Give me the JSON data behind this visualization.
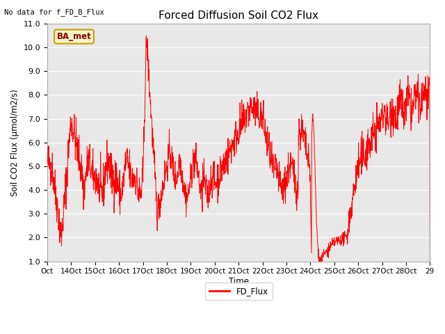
{
  "title": "Forced Diffusion Soil CO2 Flux",
  "top_left_text": "No data for f_FD_B_Flux",
  "ylabel": "Soil CO2 Flux (μmol/m2/s)",
  "xlabel": "Time",
  "legend_label": "FD_Flux",
  "line_color": "red",
  "bg_color": "#e8e8e8",
  "ylim": [
    1.0,
    11.0
  ],
  "yticks": [
    1.0,
    2.0,
    3.0,
    4.0,
    5.0,
    6.0,
    7.0,
    8.0,
    9.0,
    10.0,
    11.0
  ],
  "xtick_labels": [
    "Oct",
    "14Oct",
    "15Oct",
    "16Oct",
    "17Oct",
    "18Oct",
    "19Oct",
    "20Oct",
    "21Oct",
    "22Oct",
    "23Oct",
    "24Oct",
    "25Oct",
    "26Oct",
    "27Oct",
    "28Oct",
    "29"
  ],
  "box_label": "BA_met",
  "box_bg": "#f5f5c8",
  "box_border": "#c8a000",
  "box_text_color": "#8b0000",
  "top_text_color": "#000000",
  "seed": 42,
  "n_points": 1500,
  "figsize": [
    6.4,
    4.8
  ],
  "dpi": 100
}
